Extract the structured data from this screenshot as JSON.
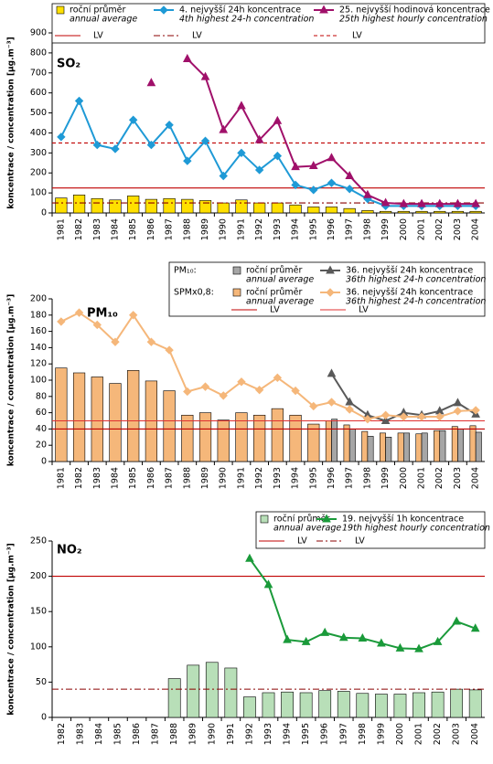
{
  "charts": [
    {
      "type": "bar_line",
      "title": "SO₂",
      "y_label": "koncentrace / concentration [µg.m⁻³]",
      "categories": [
        "1981",
        "1982",
        "1983",
        "1984",
        "1985",
        "1986",
        "1987",
        "1988",
        "1989",
        "1990",
        "1991",
        "1992",
        "1993",
        "1994",
        "1995",
        "1996",
        "1997",
        "1998",
        "1999",
        "2000",
        "2001",
        "2002",
        "2003",
        "2004"
      ],
      "ylim": [
        0,
        900
      ],
      "yticks": [
        0,
        100,
        200,
        300,
        400,
        500,
        600,
        700,
        800,
        900
      ],
      "series": [
        {
          "kind": "bar",
          "name": "roční průměr",
          "name_en": "annual average",
          "color": "#ffe000",
          "values": [
            75,
            90,
            72,
            65,
            85,
            68,
            72,
            68,
            62,
            50,
            65,
            50,
            50,
            40,
            30,
            30,
            22,
            12,
            8,
            8,
            8,
            8,
            8,
            8
          ]
        },
        {
          "kind": "line",
          "name": "4. nejvyšší 24h koncentrace",
          "name_en": "4th highest 24-h concentration",
          "color": "#1f9ad6",
          "marker": "diamond",
          "values": [
            380,
            560,
            340,
            320,
            465,
            340,
            440,
            260,
            360,
            185,
            300,
            215,
            285,
            140,
            115,
            150,
            120,
            70,
            35,
            35,
            35,
            35,
            35,
            35
          ]
        },
        {
          "kind": "line",
          "name": "25. nejvyšší hodinová koncentrace",
          "name_en": "25th highest hourly concentration",
          "color": "#a0106a",
          "marker": "triangle",
          "values": [
            null,
            null,
            null,
            null,
            null,
            650,
            null,
            770,
            680,
            415,
            535,
            365,
            460,
            230,
            235,
            275,
            185,
            90,
            50,
            45,
            45,
            45,
            45,
            45
          ]
        },
        {
          "kind": "hline",
          "name": "LV",
          "color": "#c00000",
          "dash": "solid",
          "values": [
            125
          ]
        },
        {
          "kind": "hline",
          "name": "LV",
          "color": "#8b0000",
          "dash": "dashdot",
          "values": [
            50
          ]
        },
        {
          "kind": "hline",
          "name": "LV",
          "color": "#c00000",
          "dash": "dashed",
          "values": [
            350
          ]
        }
      ]
    },
    {
      "type": "bar_line",
      "title": "PM₁₀",
      "y_label": "koncentrace / concentration [µg.m⁻³]",
      "categories": [
        "1981",
        "1982",
        "1983",
        "1984",
        "1985",
        "1986",
        "1987",
        "1988",
        "1989",
        "1990",
        "1991",
        "1992",
        "1993",
        "1994",
        "1995",
        "1996",
        "1997",
        "1998",
        "1999",
        "2000",
        "2001",
        "2002",
        "2003",
        "2004"
      ],
      "ylim": [
        0,
        200
      ],
      "yticks": [
        0,
        20,
        40,
        60,
        80,
        100,
        120,
        140,
        160,
        180,
        200
      ],
      "group_labels": [
        "PM₁₀:",
        "SPMx0,8:"
      ],
      "series": [
        {
          "kind": "bar",
          "name": "roční průměr",
          "name_en": "annual average",
          "color": "#f5b77a",
          "values": [
            115,
            109,
            104,
            96,
            112,
            99,
            87,
            57,
            60,
            51,
            60,
            57,
            65,
            57,
            46,
            50,
            45,
            37,
            35,
            35,
            34,
            38,
            43,
            44
          ]
        },
        {
          "kind": "bar",
          "name": "roční průměr",
          "name_en": "annual average",
          "color": "#a6a6a6",
          "values": [
            null,
            null,
            null,
            null,
            null,
            null,
            null,
            null,
            null,
            null,
            null,
            null,
            null,
            null,
            null,
            52,
            40,
            31,
            30,
            35,
            35,
            38,
            40,
            36
          ]
        },
        {
          "kind": "line",
          "name": "36. nejvyšší 24h koncentrace",
          "name_en": "36th highest 24-h concentration",
          "color": "#595959",
          "marker": "triangle",
          "values": [
            null,
            null,
            null,
            null,
            null,
            null,
            null,
            null,
            null,
            null,
            null,
            null,
            null,
            null,
            null,
            108,
            73,
            57,
            50,
            60,
            57,
            62,
            72,
            58
          ]
        },
        {
          "kind": "line",
          "name": "36. nejvyšší 24h koncentrace",
          "name_en": "36th highest 24-h concentration",
          "color": "#f5b77a",
          "marker": "diamond",
          "values": [
            172,
            183,
            168,
            147,
            180,
            147,
            137,
            86,
            92,
            81,
            98,
            88,
            103,
            87,
            68,
            73,
            64,
            52,
            57,
            55,
            55,
            55,
            62,
            63
          ]
        },
        {
          "kind": "hline",
          "name": "LV",
          "color": "#c00000",
          "dash": "solid",
          "values": [
            40
          ]
        },
        {
          "kind": "hline",
          "name": "LV",
          "color": "#e03030",
          "dash": "solid",
          "values": [
            50
          ]
        }
      ]
    },
    {
      "type": "bar_line",
      "title": "NO₂",
      "y_label": "koncentrace / concentration [µg.m⁻³]",
      "categories": [
        "1982",
        "1983",
        "1984",
        "1985",
        "1986",
        "1987",
        "1988",
        "1989",
        "1990",
        "1991",
        "1992",
        "1993",
        "1994",
        "1995",
        "1996",
        "1997",
        "1998",
        "1999",
        "2000",
        "2001",
        "2002",
        "2003",
        "2004"
      ],
      "ylim": [
        0,
        250
      ],
      "yticks": [
        0,
        50,
        100,
        150,
        200,
        250
      ],
      "series": [
        {
          "kind": "bar",
          "name": "roční průměr",
          "name_en": "annual average",
          "color": "#b8dfb8",
          "values": [
            null,
            null,
            null,
            null,
            null,
            null,
            55,
            74,
            78,
            70,
            29,
            35,
            36,
            35,
            38,
            37,
            34,
            33,
            33,
            35,
            36,
            40,
            39
          ]
        },
        {
          "kind": "line",
          "name": "19. nejvyšší 1h koncentrace",
          "name_en": "19th highest hourly concentration",
          "color": "#1a9a3a",
          "marker": "triangle",
          "values": [
            null,
            null,
            null,
            null,
            null,
            null,
            null,
            null,
            null,
            null,
            225,
            188,
            110,
            107,
            120,
            113,
            112,
            105,
            98,
            97,
            107,
            136,
            126
          ]
        },
        {
          "kind": "hline",
          "name": "LV",
          "color": "#c00000",
          "dash": "solid",
          "values": [
            200
          ]
        },
        {
          "kind": "hline",
          "name": "LV",
          "color": "#8b0000",
          "dash": "dashdot",
          "values": [
            40
          ]
        }
      ]
    }
  ]
}
